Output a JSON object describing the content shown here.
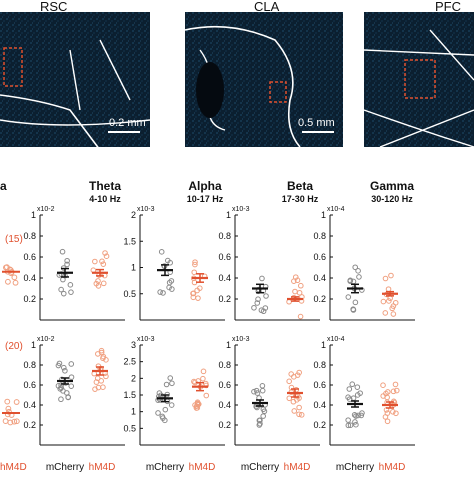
{
  "micrographs": [
    {
      "region": "RSC",
      "scale_bar": "0.2 mm"
    },
    {
      "region": "CLA",
      "scale_bar": "0.5 mm"
    },
    {
      "region": "PFC",
      "scale_bar": ""
    }
  ],
  "bands": [
    {
      "name": "a",
      "range": ""
    },
    {
      "name": "Theta",
      "range": "4-10 Hz"
    },
    {
      "name": "Alpha",
      "range": "10-17 Hz"
    },
    {
      "name": "Beta",
      "range": "17-30 Hz"
    },
    {
      "name": "Gamma",
      "range": "30-120 Hz"
    }
  ],
  "group_counts": {
    "top": "(15)",
    "bottom": "(20)"
  },
  "groups": [
    "mCherry",
    "hM4D"
  ],
  "colors": {
    "control": "#111111",
    "treated": "#e0502e",
    "control_dots": "#8a8a8a",
    "treated_dots": "#f0a080",
    "micrograph_bg": "#0b1f30",
    "box": "#e0502e"
  },
  "chart_data": [
    {
      "type": "scatter",
      "row": "top",
      "band": "Theta",
      "multiplier": "x10-2",
      "ylim": [
        0,
        1.0
      ],
      "yticks": [
        "0.2",
        "0.4",
        "0.6",
        "0.8",
        "1"
      ],
      "means": [
        0.45,
        0.45
      ],
      "sem": [
        0.04,
        0.03
      ]
    },
    {
      "type": "scatter",
      "row": "top",
      "band": "Alpha",
      "multiplier": "x10-3",
      "ylim": [
        0,
        2.0
      ],
      "yticks": [
        "0.5",
        "1",
        "1.5",
        "2"
      ],
      "means": [
        0.95,
        0.8
      ],
      "sem": [
        0.1,
        0.08
      ]
    },
    {
      "type": "scatter",
      "row": "top",
      "band": "Beta",
      "multiplier": "x10-3",
      "ylim": [
        0,
        1.0
      ],
      "yticks": [
        "0.2",
        "0.4",
        "0.6",
        "0.8",
        "1"
      ],
      "means": [
        0.3,
        0.2
      ],
      "sem": [
        0.04,
        0.02
      ]
    },
    {
      "type": "scatter",
      "row": "top",
      "band": "Gamma",
      "multiplier": "x10-4",
      "ylim": [
        0,
        1.0
      ],
      "yticks": [
        "0.2",
        "0.4",
        "0.6",
        "0.8",
        "1"
      ],
      "means": [
        0.3,
        0.25
      ],
      "sem": [
        0.04,
        0.02
      ]
    },
    {
      "type": "scatter",
      "row": "bottom",
      "band": "Theta",
      "multiplier": "x10-2",
      "ylim": [
        0,
        1.0
      ],
      "yticks": [
        "0.2",
        "0.4",
        "0.6",
        "0.8",
        "1"
      ],
      "means": [
        0.64,
        0.74
      ],
      "sem": [
        0.03,
        0.04
      ]
    },
    {
      "type": "scatter",
      "row": "bottom",
      "band": "Alpha",
      "multiplier": "x10-3",
      "ylim": [
        0,
        3.0
      ],
      "yticks": [
        "0.5",
        "1",
        "1.5",
        "2",
        "2.5",
        "3"
      ],
      "means": [
        1.4,
        1.75
      ],
      "sem": [
        0.1,
        0.12
      ]
    },
    {
      "type": "scatter",
      "row": "bottom",
      "band": "Beta",
      "multiplier": "x10-3",
      "ylim": [
        0,
        1.0
      ],
      "yticks": [
        "0.2",
        "0.4",
        "0.6",
        "0.8",
        "1"
      ],
      "means": [
        0.42,
        0.52
      ],
      "sem": [
        0.03,
        0.04
      ]
    },
    {
      "type": "scatter",
      "row": "bottom",
      "band": "Gamma",
      "multiplier": "x10-4",
      "ylim": [
        0,
        1.0
      ],
      "yticks": [
        "0.2",
        "0.4",
        "0.6",
        "0.8",
        "1"
      ],
      "means": [
        0.41,
        0.4
      ],
      "sem": [
        0.03,
        0.03
      ]
    }
  ]
}
